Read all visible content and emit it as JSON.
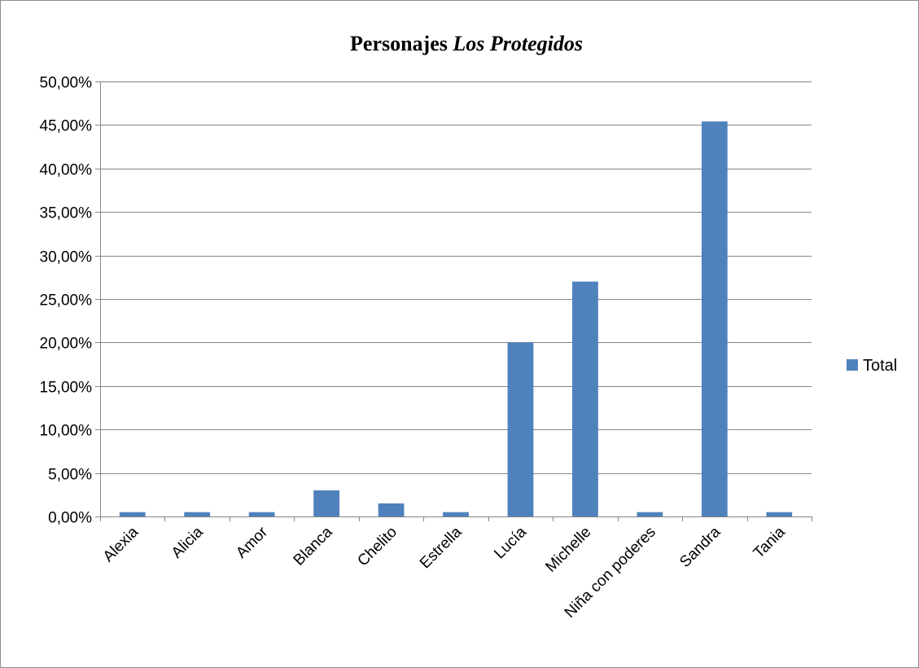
{
  "chart_data": {
    "type": "bar",
    "title_main": "Personajes",
    "title_italic": "Los Protegidos",
    "categories": [
      "Alexia",
      "Alicia",
      "Amor",
      "Blanca",
      "Chelito",
      "Estrella",
      "Lucía",
      "Michelle",
      "Niña con poderes",
      "Sandra",
      "Tania"
    ],
    "series": [
      {
        "name": "Total",
        "values": [
          0.5,
          0.5,
          0.5,
          3.0,
          1.5,
          0.5,
          20.0,
          27.0,
          0.5,
          45.4,
          0.5
        ]
      }
    ],
    "yticks": [
      "0,00%",
      "5,00%",
      "10,00%",
      "15,00%",
      "20,00%",
      "25,00%",
      "30,00%",
      "35,00%",
      "40,00%",
      "45,00%",
      "50,00%"
    ],
    "ylim": [
      0,
      50
    ],
    "grid": true,
    "legend_position": "right",
    "colors": {
      "bar": "#4f81bd",
      "grid": "#868686"
    }
  }
}
